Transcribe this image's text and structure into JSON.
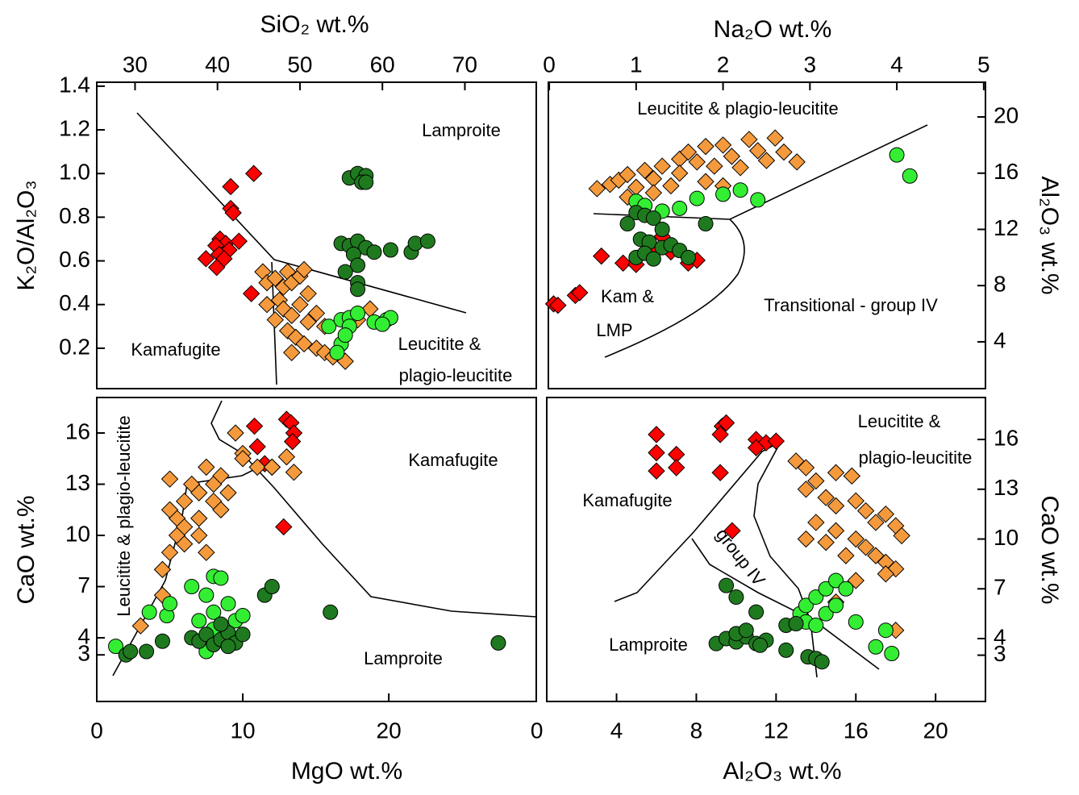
{
  "chart_data": [
    {
      "type": "scatter",
      "xlabel": "SiO₂  wt.%",
      "ylabel": "K₂O/Al₂O₃",
      "xaxis": "top",
      "yaxis": "left",
      "xlim": [
        25.36,
        78.66
      ],
      "ylim": [
        0.015,
        1.418
      ],
      "xticks": [
        30,
        40,
        50,
        60,
        70
      ],
      "yticks": [
        0.2,
        0.4,
        0.6,
        0.8,
        {
          "value": 1,
          "label": "1.0"
        },
        1.2,
        1.4
      ],
      "annotations": [
        "Lamproite",
        "Kamafugite",
        "Leucitite &",
        "plagio-leucitite"
      ],
      "series": [
        {
          "color": "#ff0000",
          "marker": "diamond",
          "x": [
            44.4,
            41.6,
            41.6,
            41.9,
            40.3,
            41.0,
            39.8,
            41.4,
            40.2,
            40.8,
            42.6,
            38.6,
            39.9,
            44.1
          ],
          "values": [
            1.0,
            0.94,
            0.84,
            0.82,
            0.7,
            0.68,
            0.67,
            0.65,
            0.63,
            0.61,
            0.69,
            0.61,
            0.57,
            0.45
          ]
        },
        {
          "color": "#f59a3c",
          "marker": "diamond",
          "x": [
            45.5,
            46,
            47,
            48,
            48.5,
            49,
            50,
            50.5,
            47.5,
            48,
            49,
            50,
            51,
            48.5,
            49.5,
            50.5,
            52,
            53,
            54,
            55.5,
            47,
            46,
            52,
            57,
            58.5,
            51,
            53,
            49
          ],
          "values": [
            0.55,
            0.5,
            0.52,
            0.48,
            0.55,
            0.5,
            0.53,
            0.56,
            0.42,
            0.38,
            0.35,
            0.4,
            0.32,
            0.28,
            0.25,
            0.22,
            0.2,
            0.18,
            0.16,
            0.14,
            0.33,
            0.4,
            0.36,
            0.33,
            0.38,
            0.45,
            0.3,
            0.18
          ]
        },
        {
          "color": "#33ee33",
          "marker": "circle",
          "x": [
            53.5,
            55,
            56,
            57,
            56,
            55,
            54.5,
            55.5,
            59,
            60.5,
            61,
            60
          ],
          "values": [
            0.3,
            0.33,
            0.34,
            0.36,
            0.3,
            0.22,
            0.18,
            0.26,
            0.32,
            0.33,
            0.34,
            0.31
          ]
        },
        {
          "color": "#1f7a1f",
          "marker": "circle",
          "x": [
            56,
            57,
            58,
            57.5,
            58,
            55,
            56,
            57,
            58,
            56.5,
            57,
            55.5,
            57,
            57,
            61,
            63.5,
            64,
            65.5,
            59
          ],
          "values": [
            0.98,
            1.0,
            0.99,
            0.96,
            0.96,
            0.68,
            0.67,
            0.69,
            0.66,
            0.63,
            0.58,
            0.55,
            0.5,
            0.47,
            0.65,
            0.64,
            0.68,
            0.69,
            0.64
          ]
        }
      ]
    },
    {
      "type": "scatter",
      "xlabel": "Na₂O wt.%",
      "ylabel": "Al₂O₃ wt.%",
      "xaxis": "top",
      "yaxis": "right",
      "xlim": [
        -0.01,
        5.02
      ],
      "ylim": [
        0.67,
        22.47
      ],
      "xticks": [
        0,
        1,
        2,
        3,
        4,
        5
      ],
      "yticks": [
        4,
        8,
        12,
        16,
        20
      ],
      "annotations": [
        "Leucitite & plagio-leucitite",
        "Kam &",
        "LMP",
        "Transitional - group IV"
      ],
      "series": [
        {
          "color": "#ff0000",
          "marker": "diamond",
          "x": [
            0.05,
            0.1,
            0.3,
            0.35,
            0.6,
            0.85,
            1.0,
            1.2,
            1.4,
            1.6,
            1.7,
            1.3
          ],
          "values": [
            6.7,
            6.6,
            7.3,
            7.5,
            10.1,
            9.6,
            9.5,
            10.3,
            10.4,
            9.6,
            9.8,
            11.5
          ]
        },
        {
          "color": "#f59a3c",
          "marker": "diamond",
          "x": [
            0.55,
            0.7,
            0.8,
            0.9,
            1.0,
            1.1,
            1.2,
            1.3,
            1.4,
            1.5,
            1.5,
            1.6,
            1.7,
            1.8,
            1.8,
            1.9,
            2.0,
            2.1,
            2.2,
            2.3,
            2.4,
            2.5,
            2.6,
            2.7,
            2.85,
            1.2,
            0.9,
            2.0
          ],
          "values": [
            14.9,
            15.2,
            15.5,
            15.9,
            15.0,
            16.2,
            15.6,
            16.5,
            15.1,
            17.0,
            16.0,
            17.5,
            16.8,
            17.9,
            15.4,
            16.5,
            18.0,
            17.2,
            16.4,
            18.4,
            17.6,
            16.9,
            18.5,
            17.5,
            16.8,
            14.6,
            14.3,
            15.1
          ]
        },
        {
          "color": "#33ee33",
          "marker": "circle",
          "x": [
            1.0,
            1.1,
            1.3,
            1.5,
            1.7,
            2.0,
            2.2,
            2.4,
            4.0,
            4.15
          ],
          "values": [
            14.0,
            13.7,
            13.3,
            13.5,
            14.2,
            14.5,
            14.8,
            14.1,
            17.3,
            15.8
          ]
        },
        {
          "color": "#1f7a1f",
          "marker": "circle",
          "x": [
            1.0,
            1.1,
            1.2,
            1.05,
            1.15,
            1.3,
            1.4,
            1.5,
            1.0,
            1.1,
            1.2,
            1.6,
            1.3,
            0.9,
            1.8
          ],
          "values": [
            13.2,
            13.0,
            12.8,
            11.3,
            11.1,
            10.7,
            10.9,
            10.5,
            10.0,
            10.3,
            9.9,
            10.0,
            12.0,
            12.4,
            12.4
          ]
        }
      ]
    },
    {
      "type": "scatter",
      "xlabel": "MgO  wt.%",
      "ylabel": "CaO  wt.%",
      "xaxis": "bottom",
      "yaxis": "left",
      "xlim": [
        0,
        30.1
      ],
      "ylim": [
        0.27,
        18.08
      ],
      "xticks": [
        0,
        10,
        20
      ],
      "yticks": [
        3,
        4,
        7,
        10,
        13,
        16
      ],
      "annotations": [
        "Leucitite & plagio-leucitite",
        "Kamafugite",
        "Lamproite"
      ],
      "series": [
        {
          "color": "#ff0000",
          "marker": "diamond",
          "x": [
            10.8,
            13,
            13.3,
            13.5,
            11,
            11.5,
            12,
            12.8,
            13.4
          ],
          "values": [
            16.4,
            16.8,
            16.6,
            16,
            15.2,
            14.2,
            14,
            10.5,
            15.5
          ]
        },
        {
          "color": "#f59a3c",
          "marker": "diamond",
          "x": [
            3,
            4.5,
            4.5,
            5,
            5.5,
            5.5,
            5,
            6,
            6,
            6.5,
            7,
            7,
            7.5,
            8,
            8,
            6,
            7,
            8.5,
            9,
            7.5,
            5,
            10,
            11,
            9.5,
            10,
            13,
            13.5,
            12,
            8.5
          ],
          "values": [
            4.7,
            6.5,
            8,
            9,
            10,
            11,
            11.5,
            12,
            10.5,
            13,
            12.5,
            11,
            14,
            13,
            12,
            9.5,
            10,
            11.5,
            12.5,
            9,
            13.3,
            14.8,
            14,
            16,
            14.5,
            14.6,
            13.7,
            14,
            13.5
          ]
        },
        {
          "color": "#33ee33",
          "marker": "circle",
          "x": [
            1.3,
            4.8,
            5,
            3.6,
            6.5,
            7.5,
            8,
            8.5,
            7,
            8,
            9,
            9.5,
            7.5,
            8,
            9,
            10
          ],
          "values": [
            3.5,
            5.3,
            6.0,
            5.5,
            7.0,
            6.5,
            7.6,
            7.5,
            5.0,
            5.5,
            6,
            5,
            3.2,
            4.5,
            4,
            5.3
          ]
        },
        {
          "color": "#1f7a1f",
          "marker": "circle",
          "x": [
            2,
            2.3,
            3.4,
            4.5,
            6.5,
            7,
            7.5,
            8,
            8.5,
            9,
            9.5,
            10,
            11.5,
            12,
            16,
            27.5,
            8.5,
            9
          ],
          "values": [
            3.0,
            3.2,
            3.2,
            3.8,
            4.0,
            3.8,
            4.2,
            3.6,
            3.9,
            4.3,
            3.7,
            4.2,
            6.5,
            7,
            5.5,
            3.7,
            4.8,
            3.5
          ]
        }
      ]
    },
    {
      "type": "scatter",
      "xlabel": "Al₂O₃ wt.%",
      "ylabel": "CaO  wt.%",
      "xaxis": "bottom",
      "yaxis": "right",
      "xlim": [
        0.5,
        22.5
      ],
      "ylim": [
        0.21,
        18.53
      ],
      "xticks": [
        0,
        4,
        8,
        12,
        16,
        20
      ],
      "yticks": [
        3,
        4,
        7,
        10,
        13,
        16
      ],
      "annotations": [
        "Leucitite &",
        "plagio-leucitite",
        "Kamafugite",
        "group IV",
        "Lamproite"
      ],
      "series": [
        {
          "color": "#ff0000",
          "marker": "diamond",
          "x": [
            6,
            6,
            7,
            6,
            7,
            9.3,
            9.5,
            9.2,
            11,
            11.5,
            12,
            11,
            9.2,
            9.8
          ],
          "values": [
            16.3,
            15.2,
            15.1,
            14.1,
            14.3,
            16.8,
            17,
            16.3,
            16,
            15.8,
            15.9,
            15.5,
            14,
            10.5
          ]
        },
        {
          "color": "#f59a3c",
          "marker": "diamond",
          "x": [
            13,
            13.5,
            14,
            15,
            15.8,
            13.5,
            14.5,
            15,
            16,
            16.5,
            17,
            17.5,
            18,
            18.3,
            14,
            15,
            16,
            16.5,
            17,
            17.5,
            18,
            13.5,
            15.5,
            14.5,
            16,
            17.5,
            15,
            18
          ],
          "values": [
            14.7,
            14.3,
            13.5,
            14,
            13.8,
            13,
            12.5,
            12,
            12.3,
            11.7,
            11,
            11.5,
            10.8,
            10.2,
            11,
            10.5,
            10,
            9.5,
            9,
            8.6,
            8.2,
            10,
            9,
            9.8,
            7.5,
            7.9,
            6.2,
            4.5
          ]
        },
        {
          "color": "#33ee33",
          "marker": "circle",
          "x": [
            13.2,
            13.5,
            14,
            14.5,
            15,
            15.5,
            14.5,
            15,
            13.5,
            16,
            17.5,
            17,
            17.8,
            14
          ],
          "values": [
            5.5,
            6,
            6.5,
            7,
            7.5,
            7,
            5.5,
            6,
            5,
            5,
            4.5,
            3.5,
            3.1,
            4.8
          ]
        },
        {
          "color": "#1f7a1f",
          "marker": "circle",
          "x": [
            9,
            9.5,
            10,
            10.5,
            11,
            11.5,
            10,
            10.5,
            10,
            9.5,
            11,
            12.5,
            12.5,
            13,
            13.6,
            14,
            14.3,
            11.2
          ],
          "values": [
            3.7,
            4,
            3.8,
            4.1,
            3.7,
            3.9,
            4.3,
            4.5,
            6.5,
            7.2,
            5.6,
            3.3,
            4.8,
            4.9,
            2.9,
            2.8,
            2.6,
            3.6
          ]
        }
      ]
    }
  ]
}
